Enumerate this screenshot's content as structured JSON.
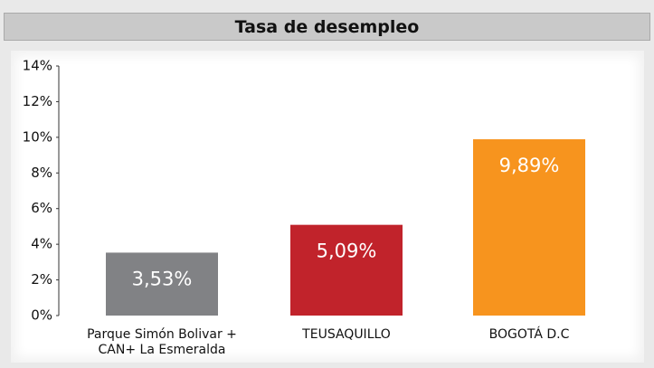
{
  "chart_data": {
    "type": "bar",
    "title": "Tasa de desempleo",
    "categories": [
      "Parque Simón Bolivar + CAN+ La Esmeralda",
      "TEUSAQUILLO",
      "BOGOTÁ D.C"
    ],
    "values": [
      3.53,
      5.09,
      9.89
    ],
    "value_labels": [
      "3,53%",
      "5,09%",
      "9,89%"
    ],
    "colors": [
      "#818285",
      "#c1232b",
      "#f7941e"
    ],
    "ylim": [
      0,
      14
    ],
    "yticks": [
      {
        "value": 0,
        "label": "0%"
      },
      {
        "value": 2,
        "label": "2%"
      },
      {
        "value": 4,
        "label": "4%"
      },
      {
        "value": 6,
        "label": "6%"
      },
      {
        "value": 8,
        "label": "8%"
      },
      {
        "value": 10,
        "label": "10%"
      },
      {
        "value": 12,
        "label": "12%"
      },
      {
        "value": 14,
        "label": "14%"
      }
    ],
    "grid": false
  }
}
